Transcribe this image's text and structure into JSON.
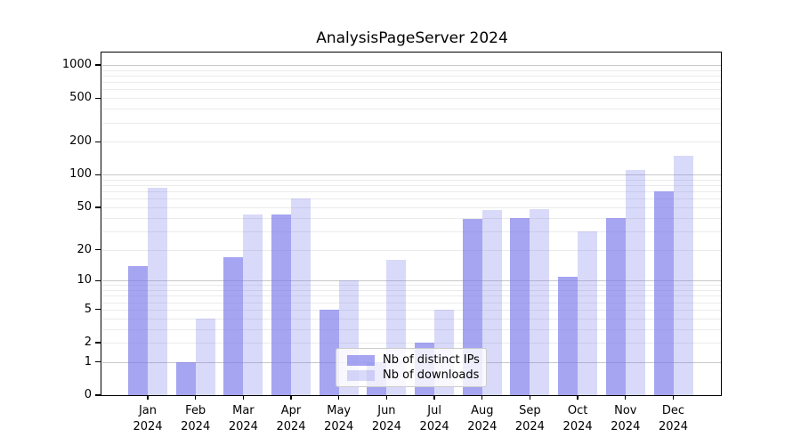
{
  "title": "AnalysisPageServer 2024",
  "chart_data": {
    "type": "bar",
    "title": "AnalysisPageServer 2024",
    "scale": "log1p",
    "categories": [
      "Jan",
      "Feb",
      "Mar",
      "Apr",
      "May",
      "Jun",
      "Jul",
      "Aug",
      "Sep",
      "Oct",
      "Nov",
      "Dec"
    ],
    "year_label": "2024",
    "series": [
      {
        "name": "Nb of distinct IPs",
        "color": "rgba(118,118,234,0.66)",
        "values": [
          14,
          1,
          17,
          43,
          5,
          1,
          2,
          39,
          40,
          11,
          40,
          70
        ]
      },
      {
        "name": "Nb of downloads",
        "color": "rgba(118,118,234,0.28)",
        "values": [
          75,
          4,
          43,
          60,
          10,
          16,
          5,
          47,
          48,
          30,
          110,
          150
        ]
      }
    ],
    "y_tick_labels": [
      "0",
      "1",
      "2",
      "5",
      "10",
      "20",
      "50",
      "100",
      "200",
      "500",
      "1000"
    ],
    "y_tick_values": [
      0,
      1,
      2,
      5,
      10,
      20,
      50,
      100,
      200,
      500,
      1000
    ],
    "major_gridlines": [
      1,
      10,
      100,
      1000
    ],
    "minor_gridline_bases": [
      1,
      10,
      100
    ],
    "ylim": [
      0,
      1280
    ],
    "grid": true,
    "legend_position": "lower center inside",
    "legend_entries": [
      "Nb of distinct IPs",
      "Nb of downloads"
    ]
  },
  "colors": {
    "bar_base": "#7676ea",
    "bar_dark_fill": "rgba(118,118,234,0.66)",
    "bar_light_fill": "rgba(118,118,234,0.28)",
    "major_grid": "#c8c8c8",
    "minor_grid": "#ebebeb",
    "spine": "#000000",
    "text": "#000000",
    "legend_border": "#cccccc"
  }
}
